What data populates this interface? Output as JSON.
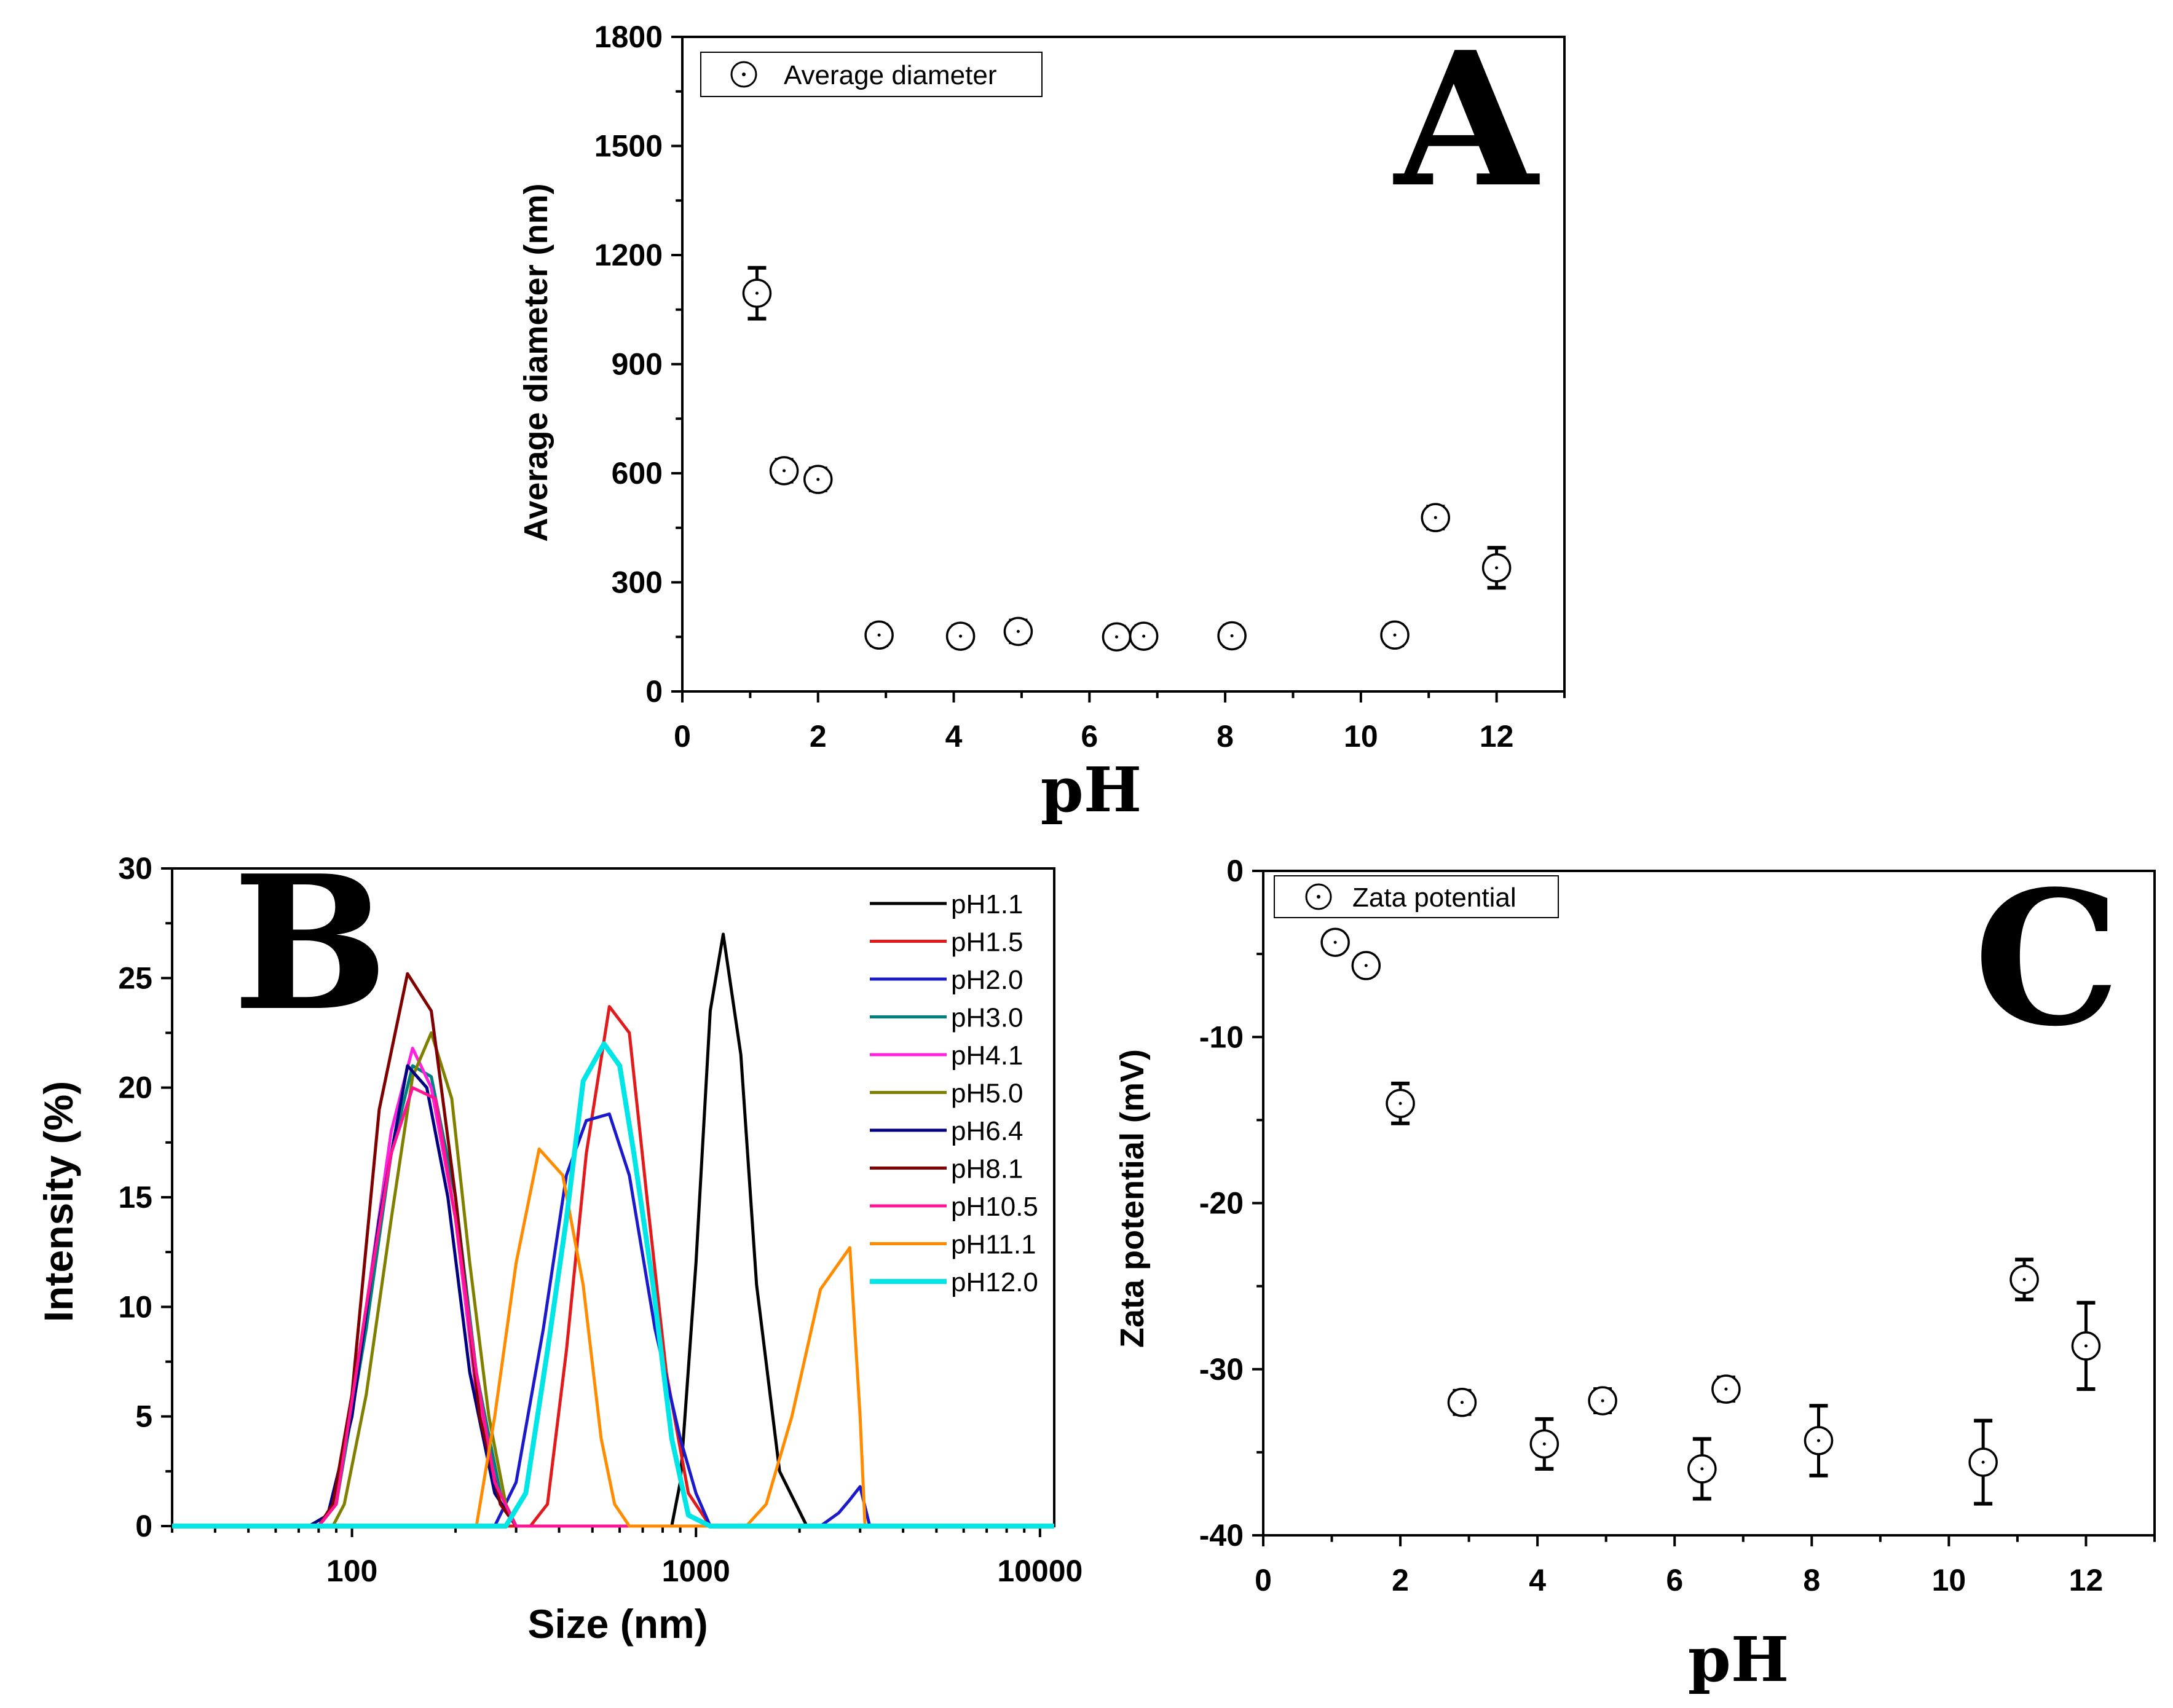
{
  "chart_data": [
    {
      "id": "A",
      "type": "scatter",
      "panel_letter": "A",
      "title": "",
      "xlabel": "pH",
      "ylabel": "Average diameter (nm)",
      "xlim": [
        0,
        13
      ],
      "ylim": [
        0,
        1800
      ],
      "xticks": [
        0,
        2,
        4,
        6,
        8,
        10,
        12
      ],
      "yticks": [
        0,
        300,
        600,
        900,
        1200,
        1500,
        1800
      ],
      "legend": {
        "label": "Average diameter",
        "placement": "top-left"
      },
      "series": [
        {
          "name": "Average diameter",
          "x": [
            1.1,
            1.5,
            2.0,
            2.9,
            4.1,
            4.95,
            6.4,
            6.8,
            8.1,
            10.5,
            11.1,
            12.0
          ],
          "y": [
            1095,
            607,
            583,
            155,
            152,
            165,
            150,
            152,
            153,
            155,
            478,
            340
          ],
          "err": [
            70,
            30,
            30,
            28,
            28,
            30,
            28,
            28,
            28,
            28,
            30,
            55
          ]
        }
      ]
    },
    {
      "id": "B",
      "type": "line",
      "panel_letter": "B",
      "title": "",
      "xlabel": "Size (nm)",
      "ylabel": "Intensity (%)",
      "xscale": "log",
      "xlim": [
        30,
        11000
      ],
      "ylim": [
        0,
        30
      ],
      "xticks": [
        100,
        1000,
        10000
      ],
      "xtick_labels": [
        "100",
        "1000",
        "10000"
      ],
      "yticks": [
        0,
        5,
        10,
        15,
        20,
        25,
        30
      ],
      "legend": {
        "placement": "top-right"
      },
      "series": [
        {
          "name": "pH1.1",
          "color": "#000000",
          "x": [
            30,
            850,
            900,
            1000,
            1100,
            1200,
            1350,
            1500,
            1750,
            2100,
            11000
          ],
          "y": [
            0,
            0,
            2,
            12,
            23.5,
            27,
            21.5,
            11,
            2.5,
            0,
            0
          ]
        },
        {
          "name": "pH1.5",
          "color": "#e31a1c",
          "x": [
            30,
            330,
            370,
            420,
            480,
            560,
            640,
            720,
            820,
            950,
            1100,
            11000
          ],
          "y": [
            0,
            0,
            1,
            8,
            17,
            23.7,
            22.5,
            15,
            7,
            1.5,
            0,
            0
          ]
        },
        {
          "name": "pH2.0",
          "color": "#1a1acc",
          "x": [
            30,
            260,
            300,
            360,
            420,
            480,
            560,
            640,
            760,
            900,
            1000,
            1100,
            2300,
            2600,
            2800,
            3000,
            3200,
            11000
          ],
          "y": [
            0,
            0,
            2,
            9,
            16,
            18.5,
            18.8,
            16,
            9,
            4,
            1.5,
            0,
            0,
            0.6,
            1.2,
            1.8,
            0,
            0
          ]
        },
        {
          "name": "pH3.0",
          "color": "#007f7f",
          "x": [
            30,
            80,
            90,
            110,
            130,
            150,
            170,
            200,
            230,
            270,
            300,
            11000
          ],
          "y": [
            0,
            0,
            1,
            9,
            17,
            21,
            20.5,
            15,
            7,
            1.5,
            0,
            0
          ]
        },
        {
          "name": "pH4.1",
          "color": "#ff22dd",
          "x": [
            30,
            80,
            90,
            110,
            130,
            150,
            170,
            200,
            230,
            270,
            300,
            11000
          ],
          "y": [
            0,
            0,
            1,
            10,
            18,
            21.8,
            20,
            14,
            6,
            1,
            0,
            0
          ]
        },
        {
          "name": "pH5.0",
          "color": "#808000",
          "x": [
            30,
            88,
            95,
            110,
            130,
            150,
            170,
            195,
            220,
            250,
            280,
            300,
            11000
          ],
          "y": [
            0,
            0,
            1,
            6,
            14,
            20.5,
            22.5,
            19.5,
            12,
            5,
            1,
            0,
            0
          ]
        },
        {
          "name": "pH6.4",
          "color": "#000080",
          "x": [
            30,
            75,
            85,
            100,
            120,
            145,
            165,
            190,
            220,
            260,
            300,
            11000
          ],
          "y": [
            0,
            0,
            0.5,
            5,
            14,
            21,
            20,
            15,
            7,
            1.5,
            0,
            0
          ]
        },
        {
          "name": "pH8.1",
          "color": "#800000",
          "x": [
            30,
            80,
            88,
            100,
            120,
            145,
            170,
            200,
            235,
            270,
            300,
            11000
          ],
          "y": [
            0,
            0,
            1,
            6,
            19,
            25.2,
            23.5,
            15,
            5,
            1,
            0,
            0
          ]
        },
        {
          "name": "pH10.5",
          "color": "#ff1493",
          "x": [
            30,
            80,
            90,
            110,
            130,
            150,
            175,
            200,
            230,
            260,
            300,
            11000
          ],
          "y": [
            0,
            0,
            1,
            10,
            17,
            20,
            19.5,
            14,
            7,
            2,
            0,
            0
          ]
        },
        {
          "name": "pH11.1",
          "color": "#ff8c00",
          "x": [
            30,
            230,
            260,
            300,
            350,
            410,
            470,
            530,
            580,
            640,
            700,
            1400,
            1600,
            1900,
            2300,
            2800,
            3000,
            3100,
            11000
          ],
          "y": [
            0,
            0,
            5,
            12,
            17.2,
            16,
            11,
            4,
            1,
            0,
            0,
            0,
            1,
            5,
            10.8,
            12.7,
            5,
            0,
            0
          ]
        },
        {
          "name": "pH12.0",
          "color": "#00e5e5",
          "x": [
            30,
            280,
            320,
            370,
            420,
            470,
            540,
            600,
            660,
            750,
            850,
            950,
            1100,
            11000
          ],
          "y": [
            0,
            0,
            1.5,
            8,
            14,
            20.3,
            22,
            21,
            17,
            11,
            4,
            0.5,
            0,
            0
          ]
        }
      ]
    },
    {
      "id": "C",
      "type": "scatter",
      "panel_letter": "C",
      "title": "",
      "xlabel": "pH",
      "ylabel": "Zata potential (mV)",
      "xlim": [
        0,
        13
      ],
      "ylim": [
        -40,
        0
      ],
      "xticks": [
        0,
        2,
        4,
        6,
        8,
        10,
        12
      ],
      "yticks": [
        0,
        -10,
        -20,
        -30,
        -40
      ],
      "legend": {
        "label": "Zata potential",
        "placement": "top-left"
      },
      "series": [
        {
          "name": "Zata potential",
          "x": [
            1.05,
            1.5,
            2.0,
            2.9,
            4.1,
            4.95,
            6.4,
            6.75,
            8.1,
            10.5,
            11.1,
            12.0
          ],
          "y": [
            -4.3,
            -5.7,
            -14.0,
            -32.0,
            -34.5,
            -31.9,
            -36.0,
            -31.2,
            -34.3,
            -35.6,
            -24.6,
            -28.6
          ],
          "err": [
            0.6,
            0.6,
            1.2,
            0.7,
            1.5,
            0.7,
            1.8,
            0.7,
            2.1,
            2.5,
            1.2,
            2.6
          ]
        }
      ]
    }
  ]
}
